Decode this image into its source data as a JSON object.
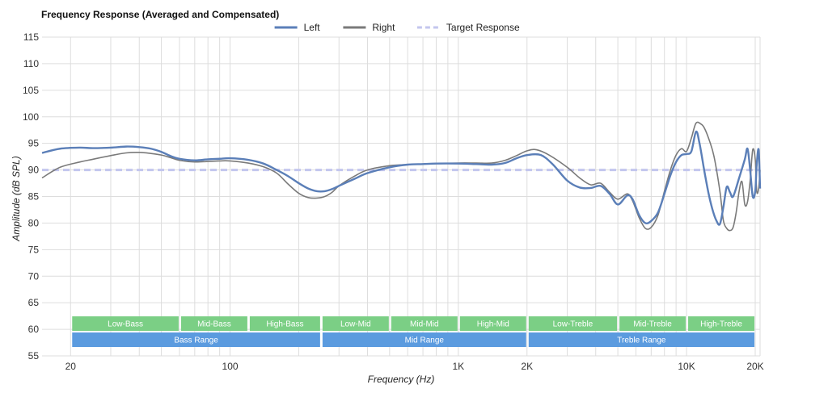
{
  "chart_data": {
    "type": "line",
    "title": "Frequency Response (Averaged and Compensated)",
    "xlabel": "Frequency (Hz)",
    "ylabel": "Amplitude (dB SPL)",
    "xscale": "log",
    "xlim": [
      15,
      21000
    ],
    "ylim": [
      55,
      115
    ],
    "y_ticks": [
      55,
      60,
      65,
      70,
      75,
      80,
      85,
      90,
      95,
      100,
      105,
      110,
      115
    ],
    "x_ticks": [
      {
        "value": 20,
        "label": "20"
      },
      {
        "value": 100,
        "label": "100"
      },
      {
        "value": 1000,
        "label": "1K"
      },
      {
        "value": 2000,
        "label": "2K"
      },
      {
        "value": 10000,
        "label": "10K"
      },
      {
        "value": 20000,
        "label": "20K"
      }
    ],
    "grid": true,
    "legend": {
      "placement": "top-center",
      "entries": [
        {
          "label": "Left",
          "color": "#5b7fb8",
          "style": "solid"
        },
        {
          "label": "Right",
          "color": "#7a7a7a",
          "style": "solid"
        },
        {
          "label": "Target Response",
          "color": "#c3c6ee",
          "style": "dashed"
        }
      ]
    },
    "series": [
      {
        "name": "Left",
        "color": "#5b7fb8",
        "points": [
          [
            15,
            93.2
          ],
          [
            18,
            94.0
          ],
          [
            22,
            94.2
          ],
          [
            25,
            94.1
          ],
          [
            30,
            94.2
          ],
          [
            35,
            94.4
          ],
          [
            40,
            94.3
          ],
          [
            45,
            94.0
          ],
          [
            50,
            93.4
          ],
          [
            55,
            92.6
          ],
          [
            60,
            92.1
          ],
          [
            70,
            91.8
          ],
          [
            80,
            92.0
          ],
          [
            90,
            92.1
          ],
          [
            100,
            92.2
          ],
          [
            120,
            91.9
          ],
          [
            140,
            91.2
          ],
          [
            160,
            90.0
          ],
          [
            180,
            88.8
          ],
          [
            200,
            87.5
          ],
          [
            220,
            86.5
          ],
          [
            240,
            86.0
          ],
          [
            260,
            86.0
          ],
          [
            280,
            86.4
          ],
          [
            300,
            87.0
          ],
          [
            350,
            88.3
          ],
          [
            400,
            89.4
          ],
          [
            500,
            90.5
          ],
          [
            600,
            91.0
          ],
          [
            700,
            91.1
          ],
          [
            800,
            91.2
          ],
          [
            1000,
            91.2
          ],
          [
            1200,
            91.1
          ],
          [
            1400,
            91.0
          ],
          [
            1600,
            91.3
          ],
          [
            1800,
            92.2
          ],
          [
            2000,
            92.8
          ],
          [
            2300,
            92.8
          ],
          [
            2600,
            91.0
          ],
          [
            3000,
            88.0
          ],
          [
            3400,
            86.7
          ],
          [
            3800,
            86.6
          ],
          [
            4200,
            87.0
          ],
          [
            4600,
            85.5
          ],
          [
            5000,
            83.5
          ],
          [
            5500,
            85.2
          ],
          [
            5800,
            84.5
          ],
          [
            6200,
            81.5
          ],
          [
            6600,
            80.0
          ],
          [
            7000,
            80.4
          ],
          [
            7500,
            82.0
          ],
          [
            8000,
            85.5
          ],
          [
            8500,
            89.0
          ],
          [
            9000,
            91.5
          ],
          [
            9500,
            92.8
          ],
          [
            10000,
            93.0
          ],
          [
            10500,
            93.5
          ],
          [
            11000,
            97.2
          ],
          [
            11400,
            95.0
          ],
          [
            12000,
            89.5
          ],
          [
            12500,
            85.5
          ],
          [
            13000,
            82.5
          ],
          [
            13500,
            80.5
          ],
          [
            14000,
            79.8
          ],
          [
            14500,
            83.0
          ],
          [
            15000,
            86.8
          ],
          [
            15500,
            85.8
          ],
          [
            16000,
            85.0
          ],
          [
            17000,
            88.5
          ],
          [
            18000,
            92.0
          ],
          [
            18500,
            94.0
          ],
          [
            19000,
            90.0
          ],
          [
            19500,
            85.0
          ],
          [
            20000,
            86.0
          ],
          [
            20300,
            91.0
          ],
          [
            20700,
            93.8
          ],
          [
            21000,
            86.5
          ]
        ]
      },
      {
        "name": "Right",
        "color": "#7a7a7a",
        "points": [
          [
            15,
            88.5
          ],
          [
            18,
            90.5
          ],
          [
            22,
            91.5
          ],
          [
            25,
            92.0
          ],
          [
            30,
            92.7
          ],
          [
            35,
            93.2
          ],
          [
            40,
            93.3
          ],
          [
            45,
            93.1
          ],
          [
            50,
            92.8
          ],
          [
            55,
            92.3
          ],
          [
            60,
            91.8
          ],
          [
            70,
            91.5
          ],
          [
            80,
            91.6
          ],
          [
            90,
            91.7
          ],
          [
            100,
            91.7
          ],
          [
            120,
            91.3
          ],
          [
            140,
            90.6
          ],
          [
            160,
            89.4
          ],
          [
            180,
            87.3
          ],
          [
            200,
            85.6
          ],
          [
            220,
            84.8
          ],
          [
            240,
            84.7
          ],
          [
            260,
            85.0
          ],
          [
            280,
            85.8
          ],
          [
            300,
            87.0
          ],
          [
            350,
            88.8
          ],
          [
            400,
            90.0
          ],
          [
            500,
            90.8
          ],
          [
            600,
            91.0
          ],
          [
            700,
            91.1
          ],
          [
            800,
            91.2
          ],
          [
            1000,
            91.3
          ],
          [
            1200,
            91.3
          ],
          [
            1400,
            91.3
          ],
          [
            1600,
            91.8
          ],
          [
            1800,
            92.7
          ],
          [
            2000,
            93.6
          ],
          [
            2200,
            93.8
          ],
          [
            2500,
            92.8
          ],
          [
            3000,
            90.5
          ],
          [
            3400,
            88.5
          ],
          [
            3800,
            87.2
          ],
          [
            4200,
            87.5
          ],
          [
            4600,
            85.8
          ],
          [
            5000,
            84.5
          ],
          [
            5500,
            85.5
          ],
          [
            5800,
            84.2
          ],
          [
            6200,
            81.0
          ],
          [
            6600,
            79.0
          ],
          [
            7000,
            79.2
          ],
          [
            7500,
            81.5
          ],
          [
            8000,
            86.0
          ],
          [
            8500,
            90.0
          ],
          [
            9000,
            92.8
          ],
          [
            9500,
            94.0
          ],
          [
            10000,
            93.5
          ],
          [
            10500,
            96.0
          ],
          [
            11000,
            98.8
          ],
          [
            11600,
            98.6
          ],
          [
            12000,
            97.8
          ],
          [
            12600,
            95.5
          ],
          [
            13200,
            92.5
          ],
          [
            14000,
            86.0
          ],
          [
            14500,
            80.5
          ],
          [
            15000,
            79.0
          ],
          [
            15500,
            78.6
          ],
          [
            16000,
            79.2
          ],
          [
            16500,
            82.0
          ],
          [
            17000,
            86.0
          ],
          [
            17500,
            87.8
          ],
          [
            18000,
            83.5
          ],
          [
            18500,
            84.0
          ],
          [
            19000,
            88.0
          ],
          [
            19500,
            93.8
          ],
          [
            20000,
            92.0
          ],
          [
            20300,
            86.0
          ],
          [
            20700,
            86.5
          ],
          [
            21000,
            90.0
          ]
        ]
      },
      {
        "name": "Target Response",
        "color": "#c3c6ee",
        "style": "dashed",
        "points": [
          [
            15,
            90
          ],
          [
            21000,
            90
          ]
        ]
      }
    ],
    "bands": [
      {
        "label": "Low-Bass",
        "start": 20,
        "end": 60,
        "color": "#7bcf85",
        "row": 1
      },
      {
        "label": "Mid-Bass",
        "start": 60,
        "end": 120,
        "color": "#7bcf85",
        "row": 1
      },
      {
        "label": "High-Bass",
        "start": 120,
        "end": 250,
        "color": "#7bcf85",
        "row": 1
      },
      {
        "label": "Low-Mid",
        "start": 250,
        "end": 500,
        "color": "#7bcf85",
        "row": 1
      },
      {
        "label": "Mid-Mid",
        "start": 500,
        "end": 1000,
        "color": "#7bcf85",
        "row": 1
      },
      {
        "label": "High-Mid",
        "start": 1000,
        "end": 2000,
        "color": "#7bcf85",
        "row": 1
      },
      {
        "label": "Low-Treble",
        "start": 2000,
        "end": 5000,
        "color": "#7bcf85",
        "row": 1
      },
      {
        "label": "Mid-Treble",
        "start": 5000,
        "end": 10000,
        "color": "#7bcf85",
        "row": 1
      },
      {
        "label": "High-Treble",
        "start": 10000,
        "end": 20000,
        "color": "#7bcf85",
        "row": 1
      },
      {
        "label": "Bass Range",
        "start": 20,
        "end": 250,
        "color": "#5b9bdf",
        "row": 2
      },
      {
        "label": "Mid Range",
        "start": 250,
        "end": 2000,
        "color": "#5b9bdf",
        "row": 2
      },
      {
        "label": "Treble Range",
        "start": 2000,
        "end": 20000,
        "color": "#5b9bdf",
        "row": 2
      }
    ]
  }
}
